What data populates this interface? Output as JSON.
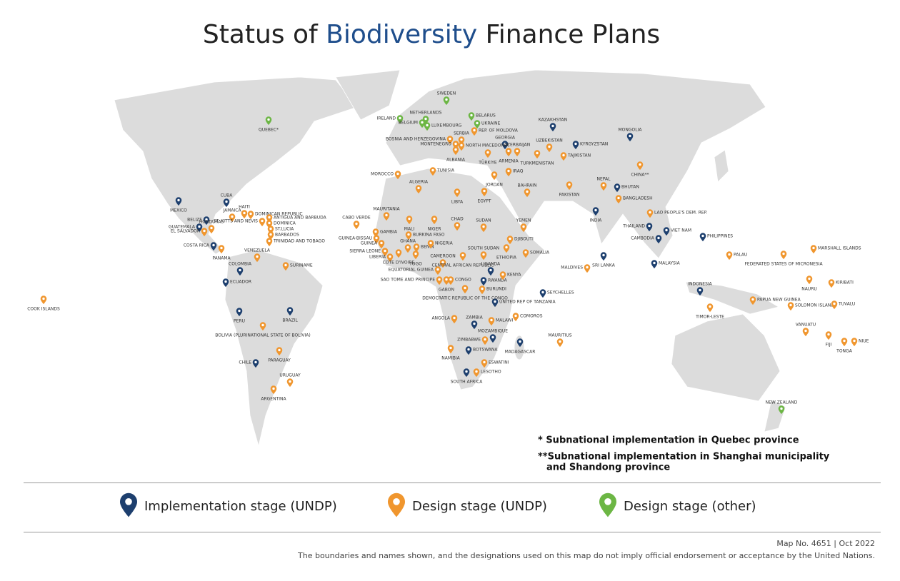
{
  "title": {
    "prefix": "Status of",
    "highlight": "Biodiversity",
    "suffix": "Finance Plans"
  },
  "legend": [
    {
      "label": "Implementation stage (UNDP)",
      "color": "#1d3f6e",
      "places": [
        "MEXICO",
        "CUBA",
        "BELIZE",
        "GUATEMALA",
        "COSTA RICA",
        "COLOMBIA",
        "ECUADOR",
        "PERU",
        "BRAZIL",
        "CHILE",
        "KAZAKHSTAN",
        "GEORGIA",
        "KYRGYZSTAN",
        "MONGOLIA",
        "BHUTAN",
        "INDIA",
        "THAILAND",
        "VIET NAM",
        "CAMBODIA",
        "PHILIPPINES",
        "MALAYSIA",
        "SRI LANKA",
        "INDONESIA",
        "UGANDA",
        "RWANDA",
        "UNITED REP OF TANZANIA",
        "SEYCHELLES",
        "ZAMBIA",
        "MOZAMBIQUE",
        "MADAGASCAR",
        "BOTSWANA",
        "SOUTH AFRICA"
      ]
    },
    {
      "label": "Design stage (UNDP)",
      "color": "#f0962e",
      "places": [
        "COOK ISLANDS",
        "JAMAICA",
        "HAITI",
        "DOMINICAN REPUBLIC",
        "ANTIGUA AND BARBUDA",
        "ST. KITTS AND NEVIS",
        "DOMINICA",
        "ST.LUCIA",
        "BARBADOS",
        "TRINIDAD AND TOBAGO",
        "HONDURAS",
        "EL SALVADOR",
        "PANAMA",
        "VENEZUELA",
        "SURINAME",
        "BOLIVIA (PLURINATIONAL STATE OF BOLIVIA)",
        "PARAGUAY",
        "URUGUAY",
        "ARGENTINA",
        "MOROCCO",
        "ALGERIA",
        "TUNISIA",
        "LIBYA",
        "EGYPT",
        "MAURITANIA",
        "CABO VERDE",
        "GAMBIA",
        "MALI",
        "NIGER",
        "CHAD",
        "SUDAN",
        "GUINEA-BISSAU",
        "GUINEA",
        "SIERRA LEONE",
        "LIBERIA",
        "COTE D'IVOIRE",
        "BURKINA FASO",
        "GHANA",
        "TOGO",
        "BENIN",
        "NIGERIA",
        "CAMEROON",
        "CENTRAL AFRICAN REPUBLIC",
        "EQUATORIAL GUINEA",
        "SAO TOME AND PRINCIPE",
        "GABON",
        "CONGO",
        "DEMOCRATIC REPUBLIC OF THE CONGO",
        "SOUTH SUDAN",
        "ETHIOPIA",
        "SOMALIA",
        "DJIBOUTI",
        "YEMEN",
        "KENYA",
        "BURUNDI",
        "COMOROS",
        "MALAWI",
        "ANGOLA",
        "ZIMBABWE",
        "NAMIBIA",
        "ESWATINI",
        "LESOTHO",
        "MAURITIUS",
        "SERBIA",
        "BOSNIA AND HERZEGOVINA",
        "MONTENEGRO",
        "ALBANIA",
        "NORTH MACEDONIA",
        "REP. OF MOLDOVA",
        "TÜRKIYE",
        "ARMENIA",
        "AZERBAIJAN",
        "UZBEKISTAN",
        "TURKMENISTAN",
        "TAJIKISTAN",
        "IRAQ",
        "JORDAN",
        "BAHRAIN",
        "PAKISTAN",
        "NEPAL",
        "BANGLADESH",
        "CHINA**",
        "LAO PEOPLE'S DEM. REP.",
        "MALDIVES",
        "PALAU",
        "FEDERATED STATES OF MICRONESIA",
        "MARSHALL ISLANDS",
        "NAURU",
        "KIRIBATI",
        "PAPUA NEW GUINEA",
        "SOLOMON ISLANDS",
        "TUVALU",
        "TIMOR-LESTE",
        "VANUATU",
        "FIJI",
        "TONGA",
        "NIUE"
      ]
    },
    {
      "label": "Design stage (other)",
      "color": "#6cb644",
      "places": [
        "QUEBEC*",
        "SWEDEN",
        "NETHERLANDS",
        "IRELAND",
        "BELGIUM",
        "LUXEMBOURG",
        "BELARUS",
        "UKRAINE",
        "NEW ZEALAND"
      ]
    }
  ],
  "notes": [
    [
      "* Subnational implementation in Quebec province"
    ],
    [
      "**Subnational implementation in Shanghai municipality",
      "and Shandong province"
    ]
  ],
  "footer": {
    "map_no": "Map No. 4651 | Oct 2022",
    "disclaimer": "The boundaries and names shown, and the designations used on this map do not imply official endorsement or acceptance by the United Nations."
  }
}
